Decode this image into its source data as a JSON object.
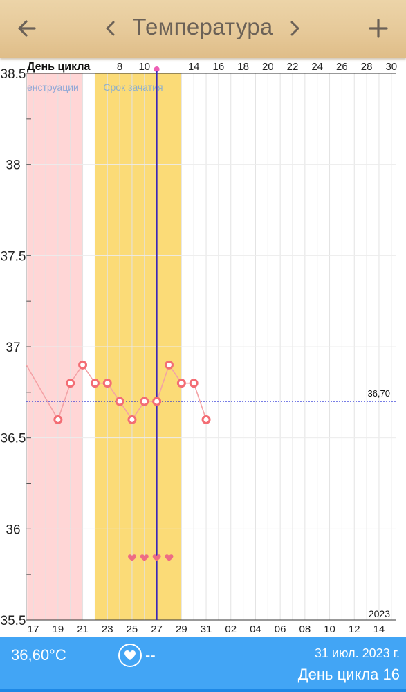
{
  "header": {
    "title": "Температура",
    "back_icon": "arrow-left-icon",
    "prev_icon": "chevron-left-icon",
    "next_icon": "chevron-right-icon",
    "add_icon": "plus-icon"
  },
  "chart_data": {
    "type": "line",
    "title": "",
    "ylim": [
      35.5,
      38.5
    ],
    "y_ticks": [
      "38.5",
      "38",
      "37.5",
      "37",
      "36.5",
      "36",
      "35.5"
    ],
    "top_axis_label": "День цикла",
    "top_ticks": [
      "8",
      "10",
      "14",
      "16",
      "18",
      "20",
      "22",
      "24",
      "26",
      "28",
      "30"
    ],
    "bottom_ticks": [
      "17",
      "19",
      "21",
      "23",
      "25",
      "27",
      "29",
      "31",
      "02",
      "04",
      "06",
      "08",
      "10",
      "12",
      "14"
    ],
    "x": [
      16,
      19,
      20,
      21,
      22,
      23,
      24,
      25,
      26,
      27,
      28,
      29,
      30,
      31
    ],
    "values": [
      36.95,
      36.6,
      36.8,
      36.9,
      36.8,
      36.8,
      36.7,
      36.6,
      36.7,
      36.7,
      36.9,
      36.8,
      36.8,
      36.6
    ],
    "coverline": {
      "value": 36.7,
      "label": "36,70"
    },
    "bands": [
      {
        "label": "енструации",
        "from": 16.5,
        "to": 21.0,
        "color": "#ffd6d6"
      },
      {
        "label": "Срок зачатия",
        "from": 22.0,
        "to": 29.0,
        "color": "#fbdb77"
      }
    ],
    "today": 27,
    "intercourse_days": [
      25,
      26,
      27,
      28
    ],
    "year_label": "2023",
    "colors": {
      "series": "#f36d74",
      "coverline": "#2732d6",
      "today": "#3a28b8",
      "heart": "#ee6c84"
    }
  },
  "footer": {
    "temperature": "36,60°C",
    "heart_icon": "heart-icon",
    "sex_value": "--",
    "date": "31 июл. 2023 г.",
    "cycle_day": "День цикла 16"
  }
}
